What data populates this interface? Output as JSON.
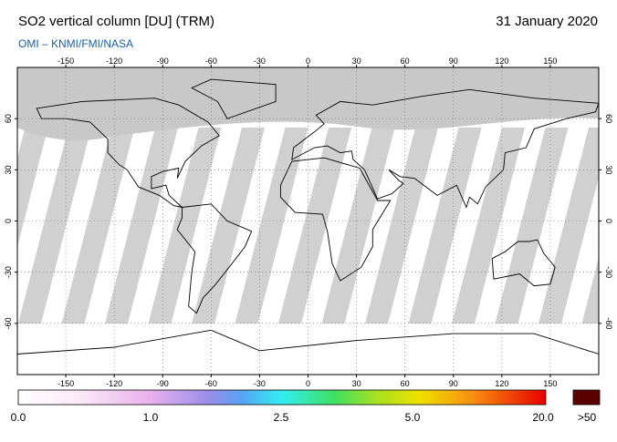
{
  "title": "SO2 vertical column [DU] (TRM)",
  "date": "31 January 2020",
  "source": "OMI  –  KNMI/FMI/NASA",
  "map": {
    "lon_ticks": [
      -150,
      -120,
      -90,
      -60,
      -30,
      0,
      30,
      60,
      90,
      120,
      150
    ],
    "lat_ticks": [
      60,
      30,
      0,
      -30,
      -60
    ]
  },
  "colorbar": {
    "labels": [
      "0.0",
      "1.0",
      "2.5",
      "5.0",
      "20.0",
      ">50"
    ]
  }
}
